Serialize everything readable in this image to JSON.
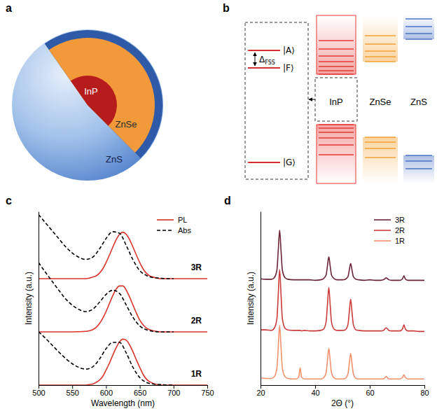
{
  "diagrams": {
    "a": {
      "label": "a",
      "layers": [
        "InP",
        "ZnSe",
        "ZnS"
      ]
    },
    "b": {
      "label": "b",
      "states": [
        "|A⟩",
        "|F⟩",
        "|G⟩"
      ],
      "splitting": {
        "symbol": "Δ",
        "subscript": "FSS"
      },
      "materials": [
        "InP",
        "ZnSe",
        "ZnS"
      ]
    }
  },
  "chart_data": [
    {
      "panel": "c",
      "type": "line",
      "xlabel": "Wavelength (nm)",
      "ylabel": "Intensity (a.u.)",
      "xlim": [
        500,
        750
      ],
      "xticks": [
        500,
        550,
        600,
        650,
        700,
        750
      ],
      "ylim": [
        0,
        3.25
      ],
      "tick_labels": "x",
      "legend": "upper right",
      "groups": [
        "3R",
        "2R",
        "1R"
      ],
      "series": [
        {
          "name": "PL",
          "color": "#d9342b",
          "line_style": "solid",
          "x": [
            500,
            550,
            570,
            575,
            580,
            585,
            590,
            595,
            600,
            605,
            610,
            615,
            620,
            625,
            630,
            635,
            640,
            645,
            650,
            655,
            660,
            665,
            670,
            675,
            680,
            685,
            690,
            700,
            750
          ],
          "values": [
            [
              0,
              0,
              0,
              0.01,
              0.03,
              0.05,
              0.1,
              0.18,
              0.3,
              0.44,
              0.59,
              0.73,
              0.83,
              0.87,
              0.83,
              0.73,
              0.59,
              0.44,
              0.3,
              0.18,
              0.1,
              0.05,
              0.03,
              0.01,
              0,
              0,
              0,
              0,
              0
            ],
            [
              0,
              0,
              0.01,
              0.02,
              0.04,
              0.08,
              0.15,
              0.25,
              0.38,
              0.53,
              0.68,
              0.8,
              0.86,
              0.86,
              0.78,
              0.65,
              0.5,
              0.35,
              0.22,
              0.13,
              0.07,
              0.04,
              0.02,
              0.01,
              0,
              0,
              0,
              0,
              0
            ],
            [
              0,
              0,
              0,
              0.01,
              0.02,
              0.05,
              0.09,
              0.16,
              0.28,
              0.41,
              0.56,
              0.7,
              0.81,
              0.86,
              0.84,
              0.75,
              0.62,
              0.47,
              0.33,
              0.2,
              0.11,
              0.06,
              0.03,
              0.01,
              0,
              0,
              0,
              0,
              0
            ]
          ]
        },
        {
          "name": "Abs",
          "color": "#000000",
          "line_style": "dashed",
          "x": [
            500,
            510,
            520,
            530,
            540,
            550,
            560,
            570,
            580,
            590,
            600,
            610,
            620,
            630,
            640,
            650,
            660,
            670,
            680,
            690,
            700
          ],
          "values": [
            [
              1.2,
              1.05,
              0.9,
              0.75,
              0.6,
              0.48,
              0.4,
              0.36,
              0.4,
              0.55,
              0.75,
              0.88,
              0.85,
              0.62,
              0.35,
              0.15,
              0.06,
              0.02,
              0.01,
              0,
              0
            ],
            [
              1.3,
              1.12,
              0.95,
              0.78,
              0.62,
              0.5,
              0.42,
              0.38,
              0.42,
              0.55,
              0.7,
              0.78,
              0.72,
              0.5,
              0.27,
              0.11,
              0.04,
              0.01,
              0,
              0,
              0
            ],
            [
              1.0,
              0.88,
              0.75,
              0.62,
              0.5,
              0.4,
              0.33,
              0.3,
              0.34,
              0.48,
              0.68,
              0.8,
              0.8,
              0.6,
              0.33,
              0.14,
              0.05,
              0.02,
              0.01,
              0,
              0
            ]
          ]
        }
      ]
    },
    {
      "panel": "d",
      "type": "line",
      "xlabel": "2Θ (°)",
      "ylabel": "Intensity (a.u.)",
      "xlim": [
        20,
        80
      ],
      "xticks": [
        20,
        40,
        60,
        80
      ],
      "ylim": [
        0,
        3.4
      ],
      "tick_labels": "x",
      "legend": "upper right",
      "x": [
        20,
        22,
        24,
        25,
        26,
        26.5,
        27,
        27.5,
        28,
        29,
        30,
        32,
        33,
        34,
        34.5,
        35,
        36,
        38,
        40,
        42,
        43,
        44,
        44.5,
        45,
        45.5,
        46,
        47,
        48,
        50,
        51,
        52,
        52.5,
        53,
        53.5,
        54,
        55,
        56,
        58,
        60,
        62,
        64,
        65,
        65.5,
        66,
        66.5,
        67,
        68,
        70,
        71,
        72,
        72.5,
        73,
        74,
        76,
        78,
        80
      ],
      "series": [
        {
          "name": "3R",
          "color": "#6b2436",
          "line_style": "solid",
          "values": [
            0.08,
            0.07,
            0.07,
            0.1,
            0.25,
            0.64,
            1.03,
            0.64,
            0.25,
            0.1,
            0.07,
            0.06,
            0.06,
            0.06,
            0.06,
            0.06,
            0.06,
            0.06,
            0.05,
            0.06,
            0.08,
            0.15,
            0.33,
            0.51,
            0.33,
            0.15,
            0.08,
            0.06,
            0.06,
            0.07,
            0.12,
            0.25,
            0.38,
            0.25,
            0.12,
            0.07,
            0.06,
            0.05,
            0.06,
            0.05,
            0.05,
            0.06,
            0.08,
            0.1,
            0.08,
            0.06,
            0.05,
            0.05,
            0.05,
            0.08,
            0.14,
            0.08,
            0.05,
            0.05,
            0.05,
            0.05
          ]
        },
        {
          "name": "2R",
          "color": "#cc3b3b",
          "line_style": "solid",
          "values": [
            0.08,
            0.08,
            0.07,
            0.11,
            0.3,
            0.78,
            1.26,
            0.78,
            0.3,
            0.11,
            0.08,
            0.07,
            0.07,
            0.07,
            0.07,
            0.06,
            0.07,
            0.06,
            0.06,
            0.07,
            0.09,
            0.23,
            0.57,
            0.91,
            0.57,
            0.23,
            0.09,
            0.07,
            0.07,
            0.08,
            0.18,
            0.43,
            0.68,
            0.43,
            0.18,
            0.08,
            0.07,
            0.06,
            0.06,
            0.06,
            0.06,
            0.07,
            0.1,
            0.12,
            0.1,
            0.07,
            0.06,
            0.06,
            0.06,
            0.1,
            0.18,
            0.1,
            0.06,
            0.06,
            0.05,
            0.05
          ]
        },
        {
          "name": "1R",
          "color": "#f2916b",
          "line_style": "solid",
          "values": [
            0.14,
            0.13,
            0.13,
            0.16,
            0.33,
            0.75,
            1.17,
            0.75,
            0.33,
            0.16,
            0.13,
            0.12,
            0.12,
            0.16,
            0.34,
            0.16,
            0.12,
            0.12,
            0.12,
            0.12,
            0.14,
            0.24,
            0.48,
            0.72,
            0.48,
            0.24,
            0.14,
            0.12,
            0.12,
            0.13,
            0.22,
            0.42,
            0.62,
            0.42,
            0.22,
            0.13,
            0.12,
            0.12,
            0.12,
            0.12,
            0.12,
            0.12,
            0.14,
            0.17,
            0.14,
            0.12,
            0.12,
            0.12,
            0.12,
            0.15,
            0.2,
            0.15,
            0.12,
            0.12,
            0.12,
            0.12
          ]
        }
      ]
    }
  ]
}
